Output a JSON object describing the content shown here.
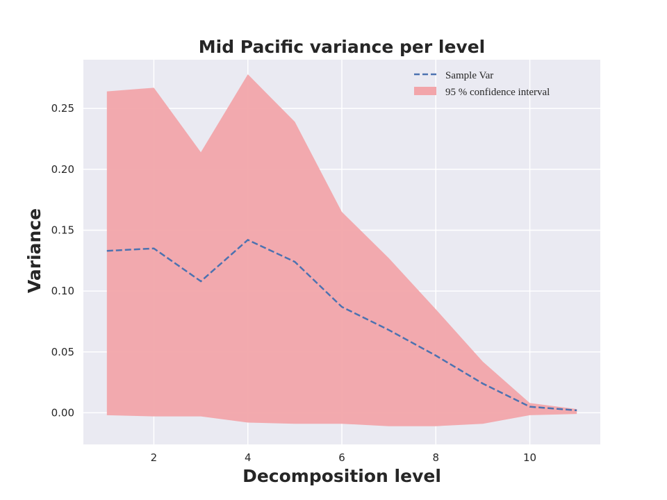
{
  "chart_data": {
    "type": "line",
    "title": "Mid Pacific variance per level",
    "xlabel": "Decomposition level",
    "ylabel": "Variance",
    "x": [
      1,
      2,
      3,
      4,
      5,
      6,
      7,
      8,
      9,
      10,
      11
    ],
    "series": [
      {
        "name": "Sample Var",
        "style": "dashed",
        "color": "#4c72b0",
        "values": [
          0.133,
          0.135,
          0.108,
          0.142,
          0.124,
          0.087,
          0.068,
          0.047,
          0.024,
          0.005,
          0.002
        ]
      }
    ],
    "band": {
      "name": "95 % confidence interval",
      "color": "#f2a5aa",
      "upper": [
        0.264,
        0.267,
        0.214,
        0.278,
        0.239,
        0.165,
        0.127,
        0.085,
        0.042,
        0.008,
        0.003
      ],
      "lower": [
        -0.002,
        -0.003,
        -0.003,
        -0.008,
        -0.009,
        -0.009,
        -0.011,
        -0.011,
        -0.009,
        -0.002,
        -0.001
      ]
    },
    "xlim": [
      0.5,
      11.5
    ],
    "ylim": [
      -0.026,
      0.29
    ],
    "xticks": [
      2,
      4,
      6,
      8,
      10
    ],
    "yticks": [
      0.0,
      0.05,
      0.1,
      0.15,
      0.2,
      0.25
    ],
    "ytick_labels": [
      "0.00",
      "0.05",
      "0.10",
      "0.15",
      "0.20",
      "0.25"
    ],
    "grid": true,
    "legend_position": "top-right",
    "background": "#eaeaf2"
  }
}
